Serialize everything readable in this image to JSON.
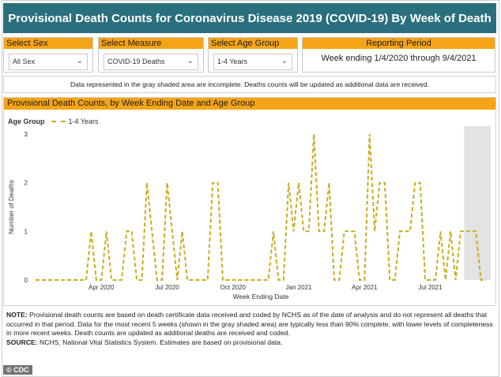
{
  "title": "Provisional Death Counts for Coronavirus Disease 2019 (COVID-19) By Week of Death",
  "filters": [
    {
      "label": "Select Sex",
      "value": "All Sex"
    },
    {
      "label": "Select Measure",
      "value": "COVID-19 Deaths"
    },
    {
      "label": "Select Age Group",
      "value": "1-4 Years"
    }
  ],
  "period": {
    "label": "Reporting Period",
    "value": "Week ending 1/4/2020 through 9/4/2021"
  },
  "notice": "Data represented in the gray shaded area are incomplete. Deaths counts will be updated as additional data are received.",
  "chart_header": "Provisional Death Counts, by Week Ending Date and Age Group",
  "legend_title": "Age Group",
  "colors": {
    "series": "#c9ad1f",
    "shade": "#e3e3e3",
    "header": "#f6a417",
    "title_bg": "#2a6f7e"
  },
  "footnote": {
    "note_label": "NOTE:",
    "note_text": " Provisional death counts are based on death certificate data received and coded by NCHS as of the date of analysis and do not represent all deaths that occurred in that period. Data for the most recent 5 weeks (shown in the gray shaded area) are typically less than 90% complete, with lower levels of completeness in more recent weeks.  Death counts are updated as additional deaths are received and coded.",
    "source_label": "SOURCE:",
    "source_text": " NCHS, National Vital Statistics System. Estimates are based on provisional data."
  },
  "watermark": "© CDC",
  "chart_data": {
    "type": "line",
    "xlabel": "Week Ending Date",
    "ylabel": "Number of Deaths",
    "ylim": [
      0,
      3
    ],
    "yticks": [
      0,
      1,
      2,
      3
    ],
    "x_tick_labels": [
      "Apr 2020",
      "Jul 2020",
      "Oct 2020",
      "Jan 2021",
      "Apr 2021",
      "Jul 2021"
    ],
    "x_tick_weeks": [
      13,
      26,
      39,
      52,
      65,
      78
    ],
    "shaded_last_weeks": 5,
    "series": [
      {
        "name": "1-4 Years",
        "values": [
          0,
          0,
          0,
          0,
          0,
          0,
          0,
          0,
          0,
          0,
          0,
          1,
          0,
          0,
          1,
          0,
          0,
          0,
          1,
          1,
          0,
          0,
          2,
          1,
          0,
          0,
          2,
          1,
          0,
          1,
          0,
          0,
          0,
          0,
          0,
          2,
          2,
          0,
          0,
          0,
          0,
          0,
          0,
          0,
          0,
          0,
          0,
          1,
          0,
          0,
          2,
          1,
          2,
          1,
          1,
          3,
          1,
          1,
          2,
          0,
          0,
          1,
          1,
          1,
          0,
          0,
          3,
          1,
          2,
          2,
          0,
          0,
          1,
          1,
          1,
          2,
          2,
          0,
          0,
          0,
          1,
          0,
          1,
          0,
          1,
          1,
          1,
          1,
          0,
          0
        ]
      }
    ]
  }
}
